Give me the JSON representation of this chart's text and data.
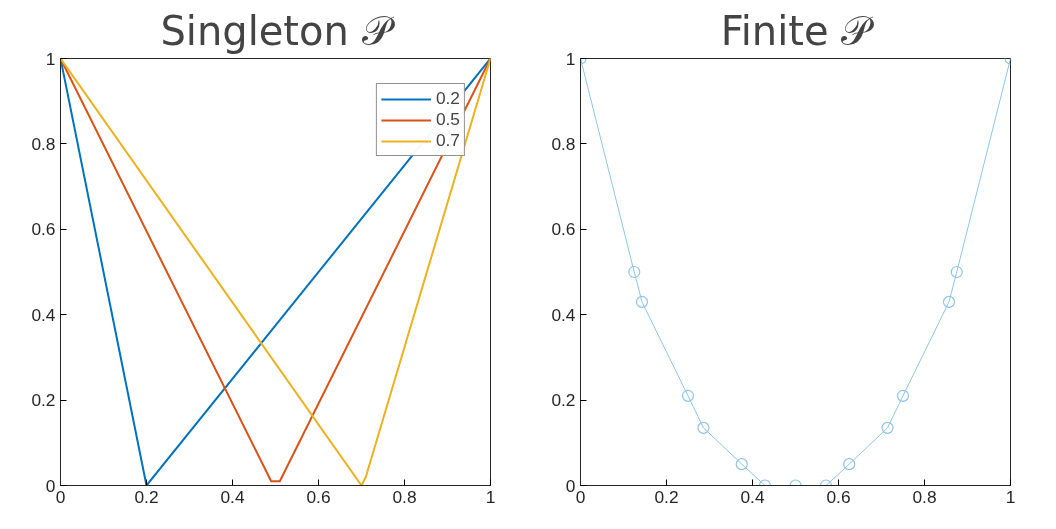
{
  "chart_data": [
    {
      "type": "line",
      "title": "Singleton 𝒫",
      "xlim": [
        0,
        1
      ],
      "ylim": [
        0,
        1
      ],
      "xticks": [
        0,
        0.2,
        0.4,
        0.6,
        0.8,
        1
      ],
      "yticks": [
        0,
        0.2,
        0.4,
        0.6,
        0.8,
        1
      ],
      "grid": false,
      "legend": "top right",
      "series": [
        {
          "name": "0.2",
          "color": "#0072bd",
          "x": [
            0,
            0.2,
            1
          ],
          "values": [
            1,
            0,
            1
          ]
        },
        {
          "name": "0.5",
          "color": "#d95319",
          "x": [
            0,
            0.49,
            0.51,
            1
          ],
          "values": [
            1,
            0.01,
            0.01,
            1
          ]
        },
        {
          "name": "0.7",
          "color": "#edb120",
          "x": [
            0,
            0.7,
            0.71,
            1
          ],
          "values": [
            1,
            0,
            0.02,
            1
          ]
        }
      ]
    },
    {
      "type": "line",
      "title": "Finite 𝒫",
      "xlim": [
        0,
        1
      ],
      "ylim": [
        0,
        1
      ],
      "xticks": [
        0,
        0.2,
        0.4,
        0.6,
        0.8,
        1
      ],
      "yticks": [
        0,
        0.2,
        0.4,
        0.6,
        0.8,
        1
      ],
      "grid": false,
      "marker": "circle",
      "series": [
        {
          "color": "#8fc4e8",
          "x": [
            0,
            0.125,
            0.143,
            0.25,
            0.286,
            0.375,
            0.429,
            0.5,
            0.571,
            0.625,
            0.714,
            0.75,
            0.857,
            0.875,
            1
          ],
          "values": [
            1,
            0.5,
            0.43,
            0.21,
            0.135,
            0.05,
            0,
            0,
            0,
            0.05,
            0.135,
            0.21,
            0.43,
            0.5,
            1
          ]
        }
      ]
    }
  ]
}
